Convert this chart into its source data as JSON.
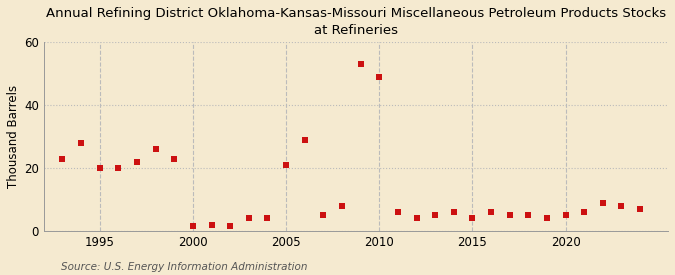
{
  "title": "Annual Refining District Oklahoma-Kansas-Missouri Miscellaneous Petroleum Products Stocks\nat Refineries",
  "ylabel": "Thousand Barrels",
  "source": "Source: U.S. Energy Information Administration",
  "background_color": "#f5ead0",
  "plot_bg_color": "#f5ead0",
  "dot_color": "#cc1111",
  "years": [
    1993,
    1994,
    1995,
    1996,
    1997,
    1998,
    1999,
    2000,
    2001,
    2002,
    2003,
    2004,
    2005,
    2006,
    2007,
    2008,
    2009,
    2010,
    2011,
    2012,
    2013,
    2014,
    2015,
    2016,
    2017,
    2018,
    2019,
    2020,
    2021,
    2022,
    2023,
    2024
  ],
  "values": [
    23,
    28,
    20,
    20,
    22,
    26,
    23,
    1.5,
    2,
    1.5,
    4,
    4,
    21,
    29,
    5,
    8,
    53,
    49,
    6,
    4,
    5,
    6,
    4,
    6,
    5,
    5,
    4,
    5,
    6,
    9,
    8,
    7
  ],
  "xlim": [
    1992.0,
    2025.5
  ],
  "ylim": [
    0,
    60
  ],
  "yticks": [
    0,
    20,
    40,
    60
  ],
  "xticks": [
    1995,
    2000,
    2005,
    2010,
    2015,
    2020
  ],
  "hgrid_color": "#bbbbbb",
  "vgrid_color": "#bbbbbb",
  "title_fontsize": 9.5,
  "axis_tick_fontsize": 8.5,
  "ylabel_fontsize": 8.5,
  "source_fontsize": 7.5,
  "dot_size": 14
}
